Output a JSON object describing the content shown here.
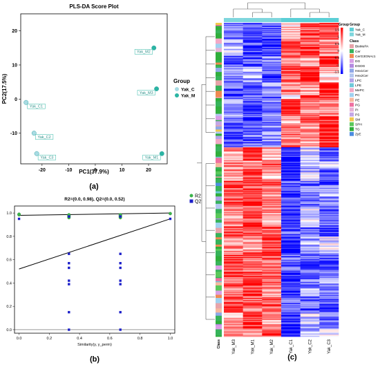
{
  "panels": [
    {
      "id": "a",
      "caption": "(a)",
      "chart_data": {
        "type": "scatter",
        "title": "PLS-DA Score Plot",
        "xlabel": "PC1(37.9%)",
        "ylabel": "PC2(17.5%)",
        "xlim": [
          -28,
          27
        ],
        "ylim": [
          -19,
          25
        ],
        "xticks": [
          -20,
          -10,
          0,
          10,
          20
        ],
        "yticks": [
          -10,
          0,
          10,
          20
        ],
        "grid": false,
        "legend_title": "Group",
        "legend_position": "right",
        "series": [
          {
            "name": "Yak_C",
            "color": "#a9dbe3",
            "points": [
              {
                "x": -26,
                "y": -1,
                "label": "Yak_C1"
              },
              {
                "x": -23,
                "y": -10,
                "label": "Yak_C2"
              },
              {
                "x": -22,
                "y": -16,
                "label": "Yak_C3"
              }
            ]
          },
          {
            "name": "Yak_M",
            "color": "#2bb5a3",
            "points": [
              {
                "x": 22,
                "y": 15,
                "label": "Yak_M2"
              },
              {
                "x": 23,
                "y": 3,
                "label": "Yak_M3"
              },
              {
                "x": 25,
                "y": -16,
                "label": "Yak_M1"
              }
            ]
          }
        ]
      }
    },
    {
      "id": "b",
      "caption": "(b)",
      "chart_data": {
        "type": "scatter",
        "title": "R2=(0.0, 0.98), Q2=(0.0, 0.52)",
        "xlabel": "Similarity(y, y_perm)",
        "ylabel": "",
        "xlim": [
          -0.03,
          1.03
        ],
        "ylim": [
          -0.03,
          1.06
        ],
        "xticks": [
          0.0,
          0.2,
          0.4,
          0.6,
          0.8,
          1.0
        ],
        "yticks": [
          0.0,
          0.2,
          0.4,
          0.6,
          0.8,
          1.0
        ],
        "legend_position": "top-right",
        "series": [
          {
            "name": "R2",
            "color": "#3cb44b",
            "marker": "circle",
            "x": [
              0,
              0,
              0.33,
              0.33,
              0.33,
              0.33,
              0.33,
              0.67,
              0.67,
              0.67,
              0.67,
              0.67,
              1.0
            ],
            "y": [
              0.985,
              0.99,
              0.96,
              0.97,
              0.975,
              0.98,
              0.985,
              0.96,
              0.97,
              0.975,
              0.98,
              0.985,
              0.995
            ]
          },
          {
            "name": "Q2",
            "color": "#1c1fc9",
            "marker": "square",
            "x": [
              0,
              0.33,
              0.33,
              0.33,
              0.33,
              0.33,
              0.33,
              0.33,
              0.33,
              0.67,
              0.67,
              0.67,
              0.67,
              0.67,
              0.67,
              0.67,
              0.67,
              1.0
            ],
            "y": [
              0.95,
              0.65,
              0.57,
              0.53,
              0.42,
              0.39,
              0.15,
              0.0,
              0.97,
              0.65,
              0.57,
              0.53,
              0.42,
              0.39,
              0.15,
              0.0,
              0.97,
              0.95
            ]
          }
        ],
        "regression_lines": [
          {
            "series": "R2",
            "intercept": 0.98,
            "slope": 0.02
          },
          {
            "series": "Q2",
            "intercept": 0.52,
            "slope": 0.43
          }
        ]
      }
    },
    {
      "id": "c",
      "caption": "(c)",
      "chart_data": {
        "type": "heatmap",
        "columns": [
          "Yak_M3",
          "Yak_M1",
          "Yak_M2",
          "Yak_C1",
          "Yak_C2",
          "Yak_C3"
        ],
        "column_groups": [
          "Yak_M",
          "Yak_M",
          "Yak_M",
          "Yak_C",
          "Yak_C",
          "Yak_C"
        ],
        "row_annotation_label": "Class",
        "color_scale": {
          "ticks": [
            "1.5",
            "1",
            "0.5",
            "0",
            "-0.5",
            "-1",
            "-1.5"
          ],
          "colors": [
            "#ff0000",
            "#ffffff",
            "#0000ff"
          ]
        },
        "group_legend": {
          "title": "Group",
          "items": [
            {
              "name": "Yak_C",
              "color": "#5ccfd6"
            },
            {
              "name": "Yak_M",
              "color": "#7fd6dd"
            }
          ]
        },
        "class_legend": {
          "title": "Class",
          "items": [
            {
              "name": "BisMePA",
              "color": "#e7a3a9"
            },
            {
              "name": "Cer",
              "color": "#36b35a"
            },
            {
              "name": "CerG3GNAc1",
              "color": "#f08a52"
            },
            {
              "name": "DG",
              "color": "#d99ee6"
            },
            {
              "name": "DGDG",
              "color": "#b48ae0"
            },
            {
              "name": "Hex1Cer",
              "color": "#8fa8e8"
            },
            {
              "name": "Hex2Cer",
              "color": "#b3c7f0"
            },
            {
              "name": "LPC",
              "color": "#b1a4e8"
            },
            {
              "name": "LPE",
              "color": "#6ec9d9"
            },
            {
              "name": "MePC",
              "color": "#f2a8c6"
            },
            {
              "name": "PC",
              "color": "#9fd1f0"
            },
            {
              "name": "PE",
              "color": "#f7b89e"
            },
            {
              "name": "PG",
              "color": "#ef6fa0"
            },
            {
              "name": "PI",
              "color": "#e6b2d6"
            },
            {
              "name": "PS",
              "color": "#c3a6e6"
            },
            {
              "name": "SM",
              "color": "#f2c94c"
            },
            {
              "name": "SPH",
              "color": "#5bc85b"
            },
            {
              "name": "TG",
              "color": "#2fae3b"
            },
            {
              "name": "ZyE",
              "color": "#4c8ce0"
            }
          ]
        }
      }
    }
  ]
}
